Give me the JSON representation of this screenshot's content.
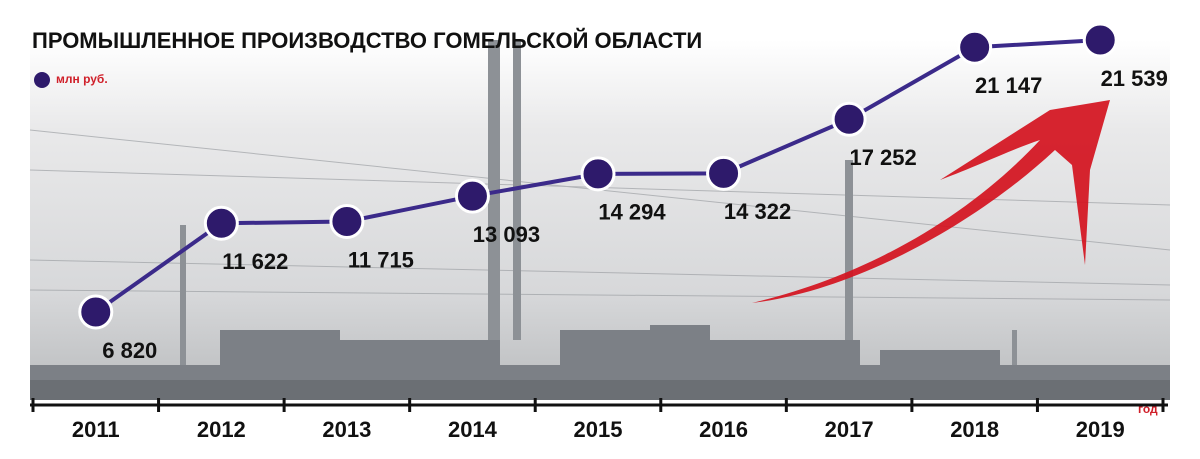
{
  "chart_data": {
    "type": "line",
    "title": "ПРОМЫШЛЕННОЕ ПРОИЗВОДСТВО ГОМЕЛЬСКОЙ ОБЛАСТИ",
    "x_label": "год",
    "categories": [
      "2011",
      "2012",
      "2013",
      "2014",
      "2015",
      "2016",
      "2017",
      "2018",
      "2019"
    ],
    "series": [
      {
        "name": "млн руб.",
        "color": "#2e1a6b",
        "values": [
          6820,
          11622,
          11715,
          13093,
          14294,
          14322,
          17252,
          21147,
          21539
        ],
        "value_labels": [
          "6 820",
          "11 622",
          "11 715",
          "13 093",
          "14 294",
          "14 322",
          "17 252",
          "21 147",
          "21 539"
        ]
      }
    ]
  }
}
